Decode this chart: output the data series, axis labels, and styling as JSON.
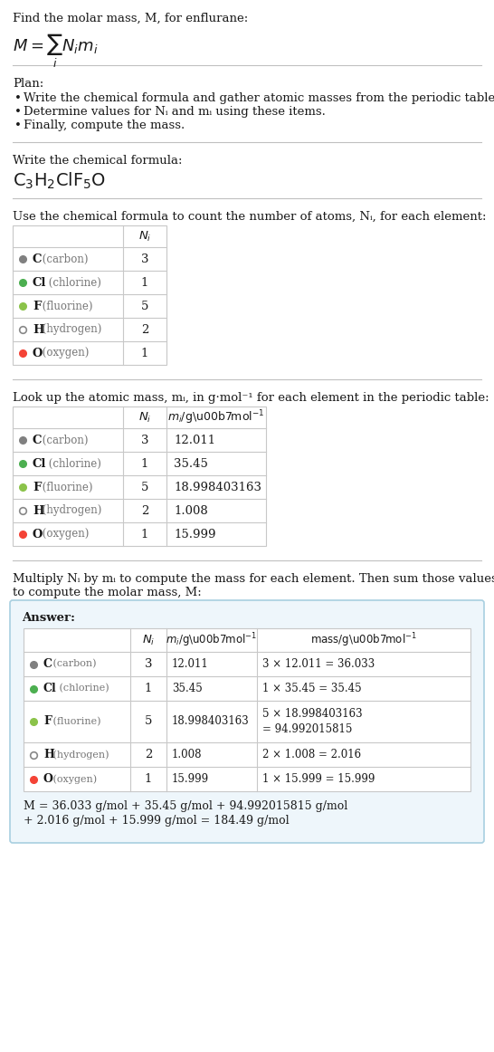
{
  "title_line": "Find the molar mass, M, for enflurane:",
  "plan_header": "Plan:",
  "plan_items": [
    "Write the chemical formula and gather atomic masses from the periodic table.",
    "Determine values for Nᵢ and mᵢ using these items.",
    "Finally, compute the mass."
  ],
  "section2_header": "Write the chemical formula:",
  "section3_header": "Use the chemical formula to count the number of atoms, Nᵢ, for each element:",
  "section4_header": "Look up the atomic mass, mᵢ, in g·mol⁻¹ for each element in the periodic table:",
  "section5_header_line1": "Multiply Nᵢ by mᵢ to compute the mass for each element. Then sum those values",
  "section5_header_line2": "to compute the molar mass, M:",
  "answer_label": "Answer:",
  "table1_elements": [
    "C (carbon)",
    "Cl (chlorine)",
    "F (fluorine)",
    "H (hydrogen)",
    "O (oxygen)"
  ],
  "table1_Ni": [
    "3",
    "1",
    "5",
    "2",
    "1"
  ],
  "table1_colors": [
    "#808080",
    "#4caf50",
    "#8bc34a",
    "none",
    "#f44336"
  ],
  "table1_dot_filled": [
    true,
    true,
    true,
    false,
    true
  ],
  "table2_mi": [
    "12.011",
    "35.45",
    "18.998403163",
    "1.008",
    "15.999"
  ],
  "table3_mass_line1": [
    "3 × 12.011 = 36.033",
    "1 × 35.45 = 35.45",
    "5 × 18.998403163",
    "2 × 1.008 = 2.016",
    "1 × 15.999 = 15.999"
  ],
  "table3_mass_line2": [
    "",
    "",
    "= 94.992015815",
    "",
    ""
  ],
  "final_eq_line1": "M = 36.033 g/mol + 35.45 g/mol + 94.992015815 g/mol",
  "final_eq_line2": "+ 2.016 g/mol + 15.999 g/mol = 184.49 g/mol",
  "bg_color": "#ffffff",
  "answer_bg": "#eef6fb",
  "answer_border": "#a8cfe0",
  "text_color": "#1a1a1a",
  "gray_text": "#777777",
  "table_border": "#c8c8c8",
  "rule_color": "#c0c0c0",
  "fs": 9.5,
  "fs_small": 8.5,
  "fs_formula": 14,
  "fs_math": 13
}
